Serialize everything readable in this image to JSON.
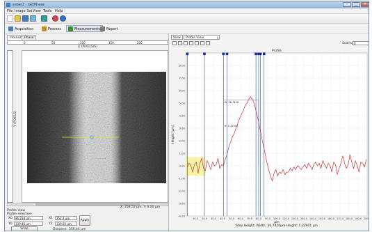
{
  "window": {
    "title": "sober2 - GetPhase",
    "controls": [
      "–",
      "□",
      "×"
    ]
  },
  "menu": [
    "File",
    "Image Set",
    "View",
    "Tools",
    "Help"
  ],
  "toolbar_icons": [
    "new-icon",
    "open-icon",
    "save-icon",
    "export-icon",
    "image-icon",
    "help-icon"
  ],
  "modes": [
    {
      "label": "Acquisition",
      "icon": "camera-icon",
      "color": "#4a7bc0"
    },
    {
      "label": "Process",
      "icon": "process-icon",
      "color": "#c98a2a"
    },
    {
      "label": "Measurements",
      "icon": "measure-icon",
      "color": "#3a8f3a"
    },
    {
      "label": "Report",
      "icon": "report-icon",
      "color": "#7a7a7a"
    }
  ],
  "left": {
    "tabs": [
      "Intensity",
      "Phase"
    ],
    "h_ruler_ticks": [
      "0",
      "50",
      "100",
      "150",
      "200"
    ],
    "h_axis_title": "X (PIXELS/S)",
    "v_axis_title": "Y (PIXELS)",
    "coord_readout": "X: 258.52 µm, Y: 0.00 µm",
    "profile": {
      "heading1": "Profile View",
      "heading2": "Profile selection",
      "x0_label": "X0",
      "x0_value": "96.238 µm",
      "y0_label": "Y0",
      "y0_value": "139.46 µm",
      "x1_label": "X1",
      "x1_value": "352.4 µm",
      "y1_label": "Y1",
      "y1_value": "139.02 µm",
      "apply_label": "Apply",
      "snap_label": "Snap",
      "distance_label": "Distance",
      "distance_value": "256.44 µm"
    }
  },
  "right": {
    "view_tab": "View",
    "view_select": "Profile View",
    "scaling_label": "Scaling",
    "scaling_value": "0",
    "toolbar_icons": [
      "reset-zoom-icon",
      "zoom-icon",
      "save-chart-icon",
      "copy-icon",
      "pan-icon",
      "marker-icon",
      "settings-icon"
    ],
    "status_line": "Step Height: Width: 36.7426µm Height: 5.22901 µm"
  },
  "chart_data": {
    "type": "line",
    "title": "Profile",
    "xlabel": "µm",
    "ylabel": "Height [µm]",
    "xlim": [
      0,
      200
    ],
    "ylim": [
      -4,
      9
    ],
    "xticks": [
      "10.0",
      "20.0",
      "30.0",
      "40.0",
      "50.0",
      "60.0",
      "70.0",
      "80.0",
      "90.0",
      "100.0",
      "110.0",
      "120.0",
      "130.0",
      "140.0",
      "150.0",
      "160.0",
      "170.0",
      "180.0",
      "190.0",
      "200.0"
    ],
    "yticks": [
      "-4.00",
      "-3.00",
      "-2.00",
      "-1.00",
      "0.00",
      "1.00",
      "2.00",
      "3.00",
      "4.00",
      "5.00",
      "6.00",
      "7.00",
      "8.00"
    ],
    "series": [
      {
        "color": "#c83232",
        "x": [
          1,
          3,
          5,
          7,
          9,
          11,
          13,
          15,
          17,
          19,
          21,
          23,
          25,
          27,
          29,
          31,
          33,
          35,
          37,
          39,
          41,
          43,
          45,
          47,
          49,
          51,
          53,
          55,
          57,
          59,
          61,
          63,
          65,
          67,
          69,
          71,
          73,
          75,
          77,
          79,
          81,
          83,
          85,
          87,
          89,
          91,
          93,
          95,
          97,
          99,
          101,
          103,
          105,
          107,
          109,
          111,
          113,
          115,
          117,
          119,
          121,
          123,
          125,
          127,
          129,
          131,
          133,
          135,
          137,
          139,
          141,
          143,
          145,
          147,
          149,
          151,
          153,
          155,
          157,
          159,
          161,
          163,
          165,
          167,
          169,
          171,
          173,
          175,
          177,
          179,
          181,
          183,
          185,
          187,
          189,
          191,
          193,
          195,
          197,
          199
        ],
        "y": [
          -0.1,
          0.2,
          0.0,
          -0.5,
          0.1,
          0.3,
          -0.6,
          0.2,
          0.6,
          -0.2,
          -0.4,
          0.4,
          0.1,
          -0.3,
          0.3,
          0.0,
          0.1,
          0.6,
          -0.2,
          0.1,
          0.0,
          0.5,
          0.9,
          1.5,
          1.9,
          2.3,
          2.6,
          3.0,
          3.4,
          3.8,
          4.1,
          4.4,
          4.8,
          5.0,
          5.3,
          5.5,
          5.3,
          5.0,
          4.4,
          3.8,
          3.1,
          2.4,
          1.7,
          1.0,
          0.3,
          -0.3,
          -0.8,
          -1.2,
          -0.6,
          -0.3,
          -0.8,
          -0.5,
          -0.6,
          -0.3,
          -0.7,
          -0.5,
          -0.5,
          -0.2,
          -0.4,
          -0.1,
          -0.3,
          0.0,
          -0.1,
          -0.3,
          -0.1,
          0.1,
          -0.2,
          0.2,
          0.0,
          -0.3,
          0.1,
          0.3,
          0.0,
          0.2,
          -0.2,
          0.4,
          0.1,
          -0.2,
          0.2,
          0.0,
          -0.5,
          0.3,
          0.1,
          -0.7,
          -0.2,
          0.2,
          0.8,
          0.2,
          -0.2,
          0.1,
          0.9,
          0.3,
          -0.2,
          0.4,
          0.0,
          -0.5,
          0.3,
          0.2,
          -0.1,
          0.5
        ]
      }
    ],
    "highlight_range": {
      "x": [
        0,
        21
      ],
      "y": [
        -0.8,
        0.7
      ]
    },
    "blue_markers_x": [
      1,
      20,
      41,
      45,
      77,
      80,
      82,
      86
    ],
    "annotations": [
      {
        "text": "W: 36.7426",
        "x": 42,
        "y": 5.0
      },
      {
        "text": "H: 5.22901",
        "x": 42,
        "y": 3.1
      }
    ],
    "grid": true
  }
}
